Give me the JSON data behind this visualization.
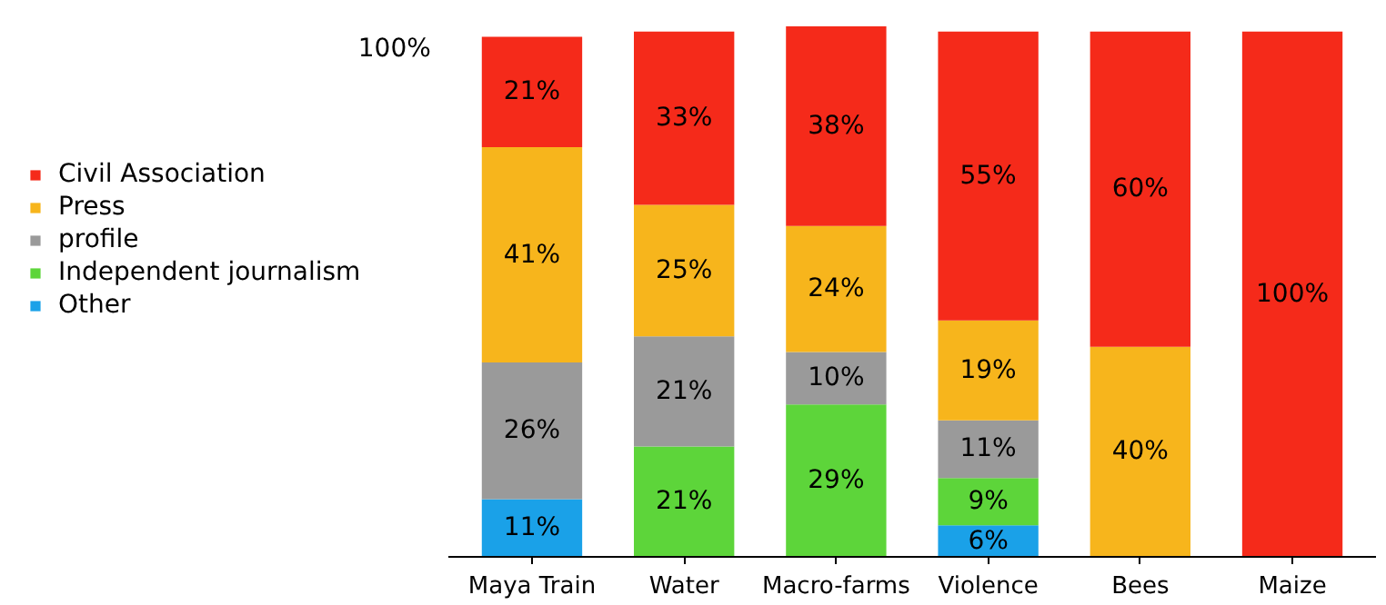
{
  "chart_data": {
    "type": "bar",
    "stacked": true,
    "categories": [
      "Maya Train",
      "Water",
      "Macro-farms",
      "Violence",
      "Bees",
      "Maize"
    ],
    "series": [
      {
        "name": "Other",
        "color": "#1aa1e8",
        "values": [
          11,
          null,
          null,
          6,
          null,
          null
        ],
        "value_labels": [
          "11%",
          null,
          null,
          "6%",
          null,
          null
        ]
      },
      {
        "name": "Independent journalism",
        "color": "#5dd53a",
        "values": [
          null,
          21,
          29,
          9,
          null,
          null
        ],
        "value_labels": [
          null,
          "21%",
          "29%",
          "9%",
          null,
          null
        ]
      },
      {
        "name": "profile",
        "color": "#9a9a9a",
        "values": [
          26,
          21,
          10,
          11,
          null,
          null
        ],
        "value_labels": [
          "26%",
          "21%",
          "10%",
          "11%",
          null,
          null
        ]
      },
      {
        "name": "Press",
        "color": "#f7b51c",
        "values": [
          41,
          25,
          24,
          19,
          40,
          null
        ],
        "value_labels": [
          "41%",
          "25%",
          "24%",
          "19%",
          "40%",
          null
        ]
      },
      {
        "name": "Civil Association",
        "color": "#f52a1a",
        "values": [
          21,
          33,
          38,
          55,
          60,
          100
        ],
        "value_labels": [
          "21%",
          "33%",
          "38%",
          "55%",
          "60%",
          "100%"
        ]
      }
    ],
    "ylim": [
      0,
      101
    ],
    "annotations": [
      "100%"
    ],
    "legend": "left",
    "grid": false
  }
}
